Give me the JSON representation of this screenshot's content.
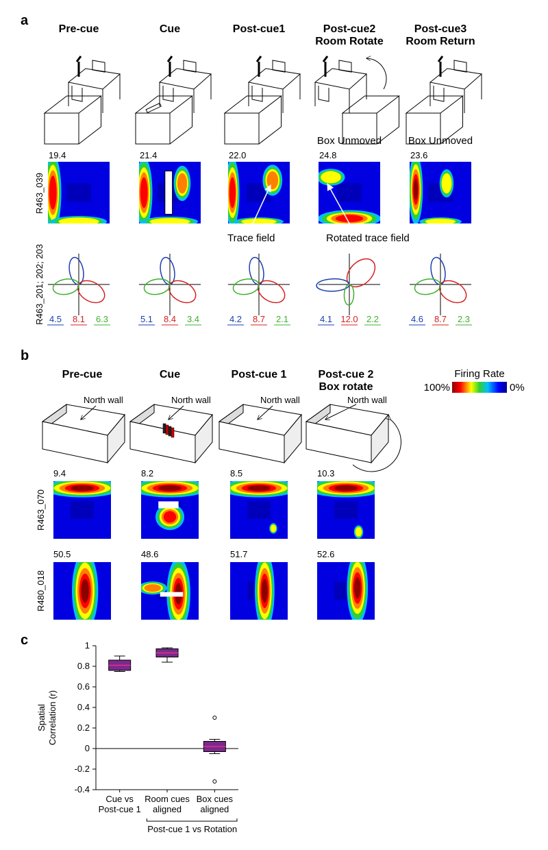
{
  "panel_a": {
    "label": "a",
    "titles": [
      [
        "Pre-cue"
      ],
      [
        "Cue"
      ],
      [
        "Post-cue1"
      ],
      [
        "Post-cue2",
        "Room Rotate"
      ],
      [
        "Post-cue3",
        "Room Return"
      ]
    ],
    "box_notes": [
      "Box Unmoved",
      "Box Unmoved"
    ],
    "rate_map_cell": "R463_039",
    "rate_map_peaks": [
      "19.4",
      "21.4",
      "22.0",
      "24.8",
      "23.6"
    ],
    "annotations": [
      "Trace field",
      "Rotated trace field"
    ],
    "polar_cells": "R463_201; 202; 203",
    "polar_rates": [
      [
        "4.5",
        "8.1",
        "6.3"
      ],
      [
        "5.1",
        "8.4",
        "3.4"
      ],
      [
        "4.2",
        "8.7",
        "2.1"
      ],
      [
        "4.1",
        "12.0",
        "2.2"
      ],
      [
        "4.6",
        "8.7",
        "2.3"
      ]
    ]
  },
  "panel_b": {
    "label": "b",
    "titles": [
      [
        "Pre-cue"
      ],
      [
        "Cue"
      ],
      [
        "Post-cue 1"
      ],
      [
        "Post-cue 2",
        "Box rotate"
      ]
    ],
    "wall_labels": [
      "North wall",
      "North wall",
      "North wall",
      "North wall"
    ],
    "colorbar": {
      "title": "Firing Rate",
      "max_label": "100%",
      "min_label": "0%"
    },
    "rows": [
      {
        "cell": "R463_070",
        "peaks": [
          "9.4",
          "8.2",
          "8.5",
          "10.3"
        ]
      },
      {
        "cell": "R480_018",
        "peaks": [
          "50.5",
          "48.6",
          "51.7",
          "52.6"
        ]
      }
    ]
  },
  "panel_c": {
    "label": "c"
  },
  "chart_data": {
    "type": "box",
    "ylabel": [
      "Spatial",
      "Correlation (r)"
    ],
    "categories": [
      [
        "Cue vs",
        "Post-cue 1"
      ],
      [
        "Room cues",
        "aligned"
      ],
      [
        "Box cues",
        "aligned"
      ]
    ],
    "group_label": "Post-cue 1 vs Rotation",
    "color": "#7a2a8c",
    "median_color": "#e0308a",
    "ylim": [
      -0.4,
      1
    ],
    "yticks": [
      -0.4,
      -0.2,
      0,
      0.2,
      0.4,
      0.6,
      0.8,
      1
    ],
    "boxes": [
      {
        "whisker_low": 0.75,
        "q1": 0.76,
        "median": 0.81,
        "q3": 0.86,
        "whisker_high": 0.9,
        "outliers": []
      },
      {
        "whisker_low": 0.84,
        "q1": 0.89,
        "median": 0.93,
        "q3": 0.97,
        "whisker_high": 0.98,
        "outliers": []
      },
      {
        "whisker_low": -0.05,
        "q1": -0.03,
        "median": 0.02,
        "q3": 0.07,
        "whisker_high": 0.09,
        "outliers": [
          0.3,
          -0.32
        ]
      }
    ]
  }
}
